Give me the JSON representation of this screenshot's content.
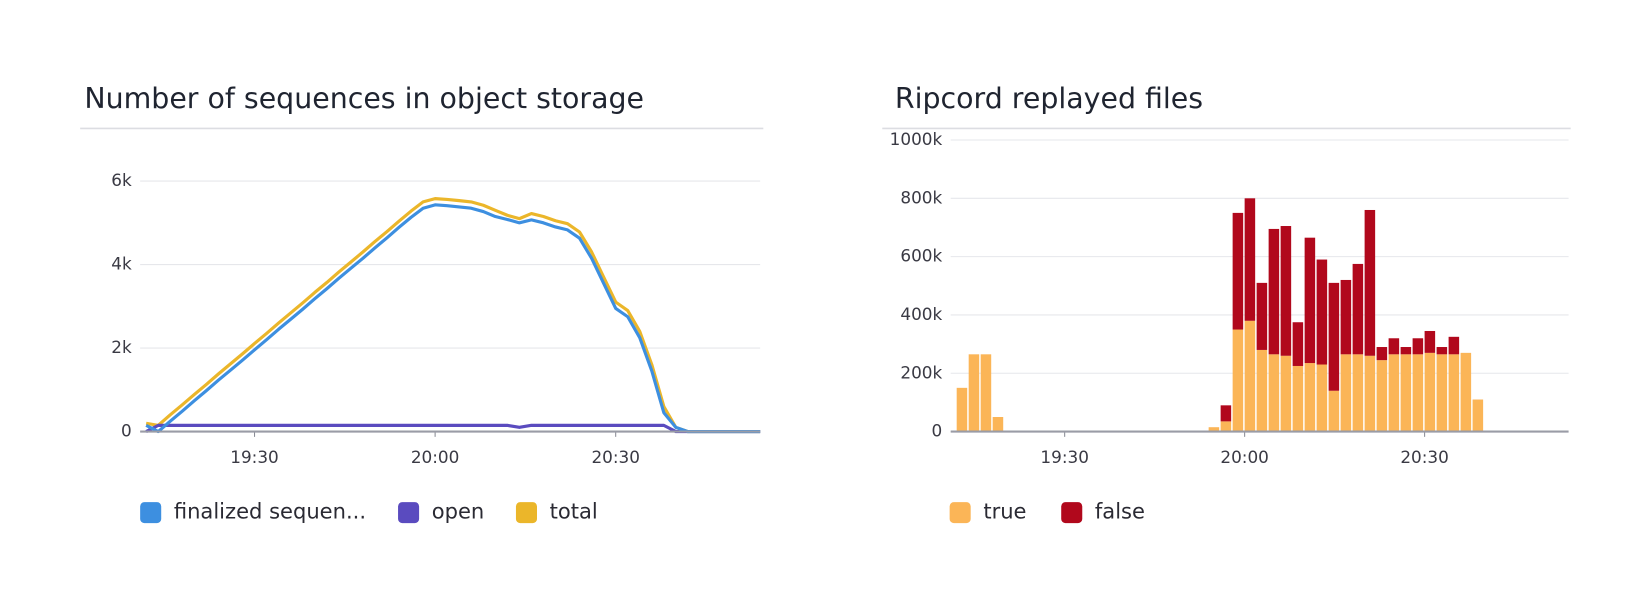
{
  "chart_data": [
    {
      "type": "line",
      "title": "Number of sequences in object storage",
      "x": [
        "19:12",
        "19:14",
        "19:16",
        "19:18",
        "19:20",
        "19:22",
        "19:24",
        "19:26",
        "19:28",
        "19:30",
        "19:32",
        "19:34",
        "19:36",
        "19:38",
        "19:40",
        "19:42",
        "19:44",
        "19:46",
        "19:48",
        "19:50",
        "19:52",
        "19:54",
        "19:56",
        "19:58",
        "20:00",
        "20:02",
        "20:04",
        "20:06",
        "20:08",
        "20:10",
        "20:12",
        "20:14",
        "20:16",
        "20:18",
        "20:20",
        "20:22",
        "20:24",
        "20:26",
        "20:28",
        "20:30",
        "20:32",
        "20:34",
        "20:36",
        "20:38",
        "20:40",
        "20:42",
        "20:44",
        "20:46",
        "20:48",
        "20:50",
        "20:52",
        "20:54"
      ],
      "series": [
        {
          "name": "finalized sequen...",
          "color": "#3d8fe0",
          "values": [
            150,
            0,
            250,
            490,
            740,
            980,
            1230,
            1470,
            1710,
            1960,
            2200,
            2450,
            2690,
            2930,
            3180,
            3420,
            3670,
            3910,
            4150,
            4400,
            4640,
            4890,
            5130,
            5350,
            5430,
            5410,
            5380,
            5350,
            5270,
            5150,
            5080,
            5000,
            5070,
            5000,
            4900,
            4830,
            4630,
            4150,
            3550,
            2950,
            2750,
            2250,
            1450,
            450,
            100,
            0,
            0,
            0,
            0,
            0,
            0,
            0
          ]
        },
        {
          "name": "open",
          "color": "#5a4bbf",
          "values": [
            0,
            150,
            150,
            150,
            150,
            150,
            150,
            150,
            150,
            150,
            150,
            150,
            150,
            150,
            150,
            150,
            150,
            150,
            150,
            150,
            150,
            150,
            150,
            150,
            150,
            150,
            150,
            150,
            150,
            150,
            150,
            100,
            150,
            150,
            150,
            150,
            150,
            150,
            150,
            150,
            150,
            150,
            150,
            150,
            0,
            0,
            0,
            0,
            0,
            0,
            0,
            0
          ]
        },
        {
          "name": "total",
          "color": "#ebb62a",
          "values": [
            200,
            150,
            400,
            640,
            890,
            1130,
            1380,
            1620,
            1860,
            2110,
            2350,
            2600,
            2840,
            3080,
            3330,
            3570,
            3820,
            4060,
            4300,
            4550,
            4790,
            5040,
            5280,
            5500,
            5580,
            5560,
            5530,
            5500,
            5420,
            5300,
            5180,
            5100,
            5220,
            5150,
            5050,
            4980,
            4780,
            4300,
            3700,
            3100,
            2900,
            2400,
            1600,
            600,
            100,
            0,
            0,
            0,
            0,
            0,
            0,
            0
          ]
        }
      ],
      "xlim": [
        "19:11",
        "20:54"
      ],
      "xticks": [
        "19:30",
        "20:00",
        "20:30"
      ],
      "ylim": [
        0,
        6000
      ],
      "yticks": [
        0,
        {
          "value": 2000,
          "label": "2k"
        },
        {
          "value": 4000,
          "label": "4k"
        },
        {
          "value": 6000,
          "label": "6k"
        }
      ],
      "grid": true
    },
    {
      "type": "bar",
      "title": "Ripcord replayed files",
      "stacked": true,
      "x": [
        "19:12",
        "19:14",
        "19:16",
        "19:18",
        "19:54",
        "19:56",
        "19:58",
        "20:00",
        "20:02",
        "20:04",
        "20:06",
        "20:08",
        "20:10",
        "20:12",
        "20:14",
        "20:16",
        "20:18",
        "20:20",
        "20:22",
        "20:24",
        "20:26",
        "20:28",
        "20:30",
        "20:32",
        "20:34",
        "20:36",
        "20:38"
      ],
      "series": [
        {
          "name": "true",
          "color": "#fbb557",
          "values": [
            150000,
            265000,
            265000,
            50000,
            15000,
            35000,
            350000,
            380000,
            280000,
            265000,
            260000,
            225000,
            235000,
            230000,
            140000,
            265000,
            265000,
            260000,
            245000,
            265000,
            265000,
            265000,
            270000,
            265000,
            265000,
            270000,
            110000
          ]
        },
        {
          "name": "false",
          "color": "#b1081c",
          "values": [
            0,
            0,
            0,
            0,
            0,
            55000,
            400000,
            420000,
            230000,
            430000,
            445000,
            150000,
            430000,
            360000,
            370000,
            255000,
            310000,
            500000,
            45000,
            55000,
            25000,
            55000,
            75000,
            25000,
            60000,
            0,
            0
          ]
        }
      ],
      "xlim": [
        "19:11",
        "20:54"
      ],
      "xticks": [
        "19:30",
        "20:00",
        "20:30"
      ],
      "ylim": [
        0,
        1000000
      ],
      "yticks": [
        0,
        {
          "value": 200000,
          "label": "200k"
        },
        {
          "value": 400000,
          "label": "400k"
        },
        {
          "value": 600000,
          "label": "600k"
        },
        {
          "value": 800000,
          "label": "800k"
        },
        {
          "value": 1000000,
          "label": "1000k"
        }
      ],
      "grid": true
    }
  ]
}
